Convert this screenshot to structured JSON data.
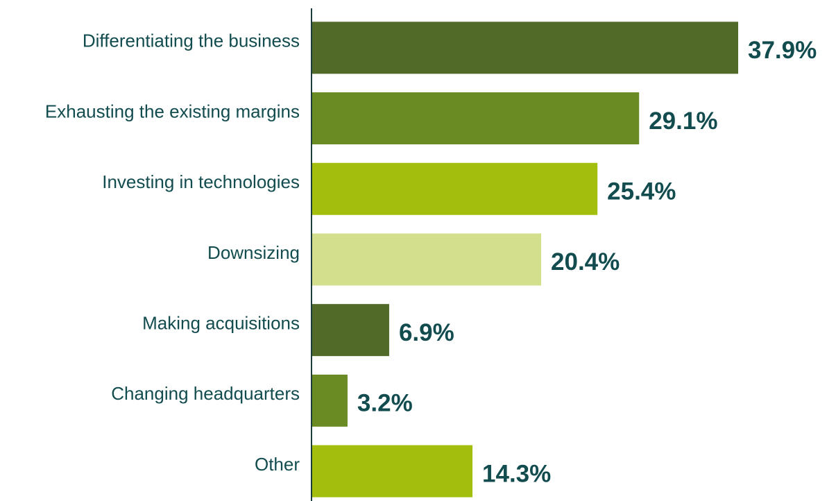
{
  "chart_data": {
    "type": "hbar",
    "categories": [
      "Differentiating the business",
      "Exhausting the existing margins",
      "Investing in technologies",
      "Downsizing",
      "Making acquisitions",
      "Changing headquarters",
      "Other"
    ],
    "values": [
      37.9,
      29.1,
      25.4,
      20.4,
      6.9,
      3.2,
      14.3
    ],
    "value_labels": [
      "37.9%",
      "29.1%",
      "25.4%",
      "20.4%",
      "6.9%",
      "3.2%",
      "14.3%"
    ],
    "colors": [
      "#526a27",
      "#6a8a23",
      "#a3be0c",
      "#d3df8c",
      "#526a27",
      "#6a8a23",
      "#a3be0c"
    ]
  }
}
